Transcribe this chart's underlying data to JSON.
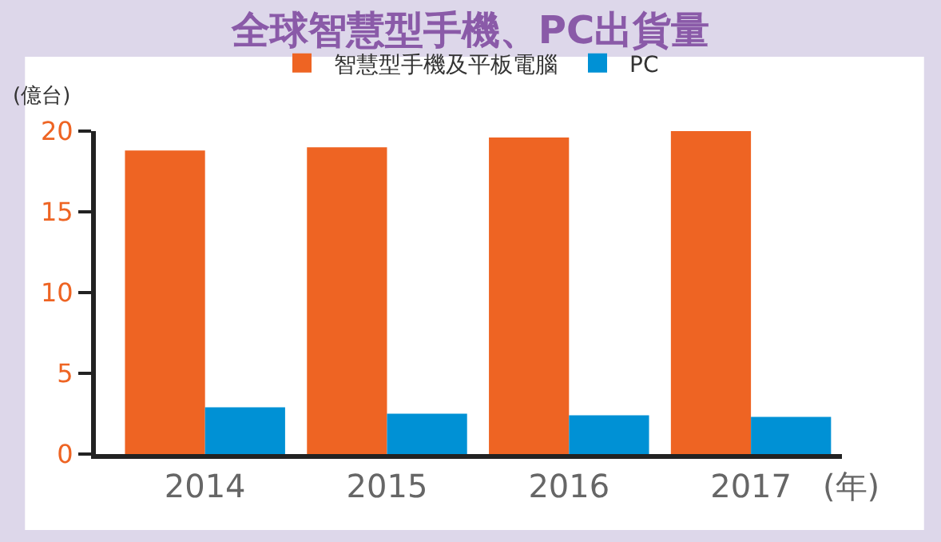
{
  "chart_data": {
    "type": "bar",
    "title": "全球智慧型手機、PC出貨量",
    "ylabel": "(億台)",
    "xlabel": "(年)",
    "categories": [
      "2014",
      "2015",
      "2016",
      "2017"
    ],
    "series": [
      {
        "name": "智慧型手機及平板電腦",
        "color": "#ee6423",
        "values": [
          18.8,
          19.0,
          19.6,
          20.0
        ]
      },
      {
        "name": "PC",
        "color": "#0091d5",
        "values": [
          2.9,
          2.5,
          2.4,
          2.3
        ]
      }
    ],
    "ylim": [
      0,
      20
    ],
    "yticks": [
      0,
      5,
      10,
      15,
      20
    ],
    "legend": "top"
  }
}
